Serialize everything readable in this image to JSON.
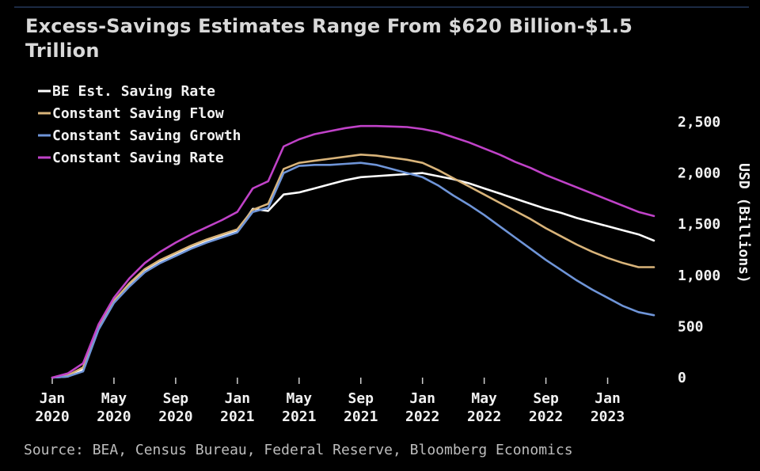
{
  "title": "Excess-Savings Estimates Range From $620 Billion-$1.5 Trillion",
  "source": "Source: BEA, Census Bureau, Federal Reserve, Bloomberg Economics",
  "chart_data": {
    "type": "line",
    "title": "Excess-Savings Estimates Range From $620 Billion-$1.5 Trillion",
    "ylabel": "USD (Billions)",
    "ylim": [
      0,
      2500
    ],
    "yticks": [
      "0",
      "500",
      "1,000",
      "1,500",
      "2,000",
      "2,500"
    ],
    "ytick_values": [
      0,
      500,
      1000,
      1500,
      2000,
      2500
    ],
    "xlim": [
      "2020-01",
      "2023-04"
    ],
    "xticks": [
      {
        "month": "2020-01",
        "line1": "Jan",
        "line2": "2020"
      },
      {
        "month": "2020-05",
        "line1": "May",
        "line2": "2020"
      },
      {
        "month": "2020-09",
        "line1": "Sep",
        "line2": "2020"
      },
      {
        "month": "2021-01",
        "line1": "Jan",
        "line2": "2021"
      },
      {
        "month": "2021-05",
        "line1": "May",
        "line2": "2021"
      },
      {
        "month": "2021-09",
        "line1": "Sep",
        "line2": "2021"
      },
      {
        "month": "2022-01",
        "line1": "Jan",
        "line2": "2022"
      },
      {
        "month": "2022-05",
        "line1": "May",
        "line2": "2022"
      },
      {
        "month": "2022-09",
        "line1": "Sep",
        "line2": "2022"
      },
      {
        "month": "2023-01",
        "line1": "Jan",
        "line2": "2023"
      }
    ],
    "legend_position": "top-left",
    "grid": false,
    "x": [
      "2020-01",
      "2020-02",
      "2020-03",
      "2020-04",
      "2020-05",
      "2020-06",
      "2020-07",
      "2020-08",
      "2020-09",
      "2020-10",
      "2020-11",
      "2020-12",
      "2021-01",
      "2021-02",
      "2021-03",
      "2021-04",
      "2021-05",
      "2021-06",
      "2021-07",
      "2021-08",
      "2021-09",
      "2021-10",
      "2021-11",
      "2021-12",
      "2022-01",
      "2022-02",
      "2022-03",
      "2022-04",
      "2022-05",
      "2022-06",
      "2022-07",
      "2022-08",
      "2022-09",
      "2022-10",
      "2022-11",
      "2022-12",
      "2023-01",
      "2023-02",
      "2023-03",
      "2023-04"
    ],
    "series": [
      {
        "name": "BE Est. Saving Rate",
        "color": "#ffffff",
        "values": [
          0,
          10,
          80,
          480,
          740,
          900,
          1040,
          1130,
          1200,
          1270,
          1330,
          1380,
          1430,
          1650,
          1630,
          1790,
          1810,
          1850,
          1890,
          1930,
          1960,
          1970,
          1980,
          1990,
          2000,
          1970,
          1940,
          1900,
          1850,
          1800,
          1750,
          1700,
          1650,
          1610,
          1560,
          1520,
          1480,
          1440,
          1400,
          1340
        ]
      },
      {
        "name": "Constant Saving Flow",
        "color": "#d9b47a",
        "values": [
          0,
          20,
          100,
          500,
          750,
          920,
          1060,
          1150,
          1220,
          1290,
          1350,
          1400,
          1450,
          1640,
          1700,
          2040,
          2100,
          2120,
          2140,
          2160,
          2180,
          2170,
          2150,
          2130,
          2100,
          2030,
          1950,
          1870,
          1790,
          1710,
          1630,
          1550,
          1460,
          1380,
          1300,
          1230,
          1170,
          1120,
          1080,
          1080
        ]
      },
      {
        "name": "Constant Saving Growth",
        "color": "#6f95d8",
        "values": [
          0,
          10,
          60,
          470,
          730,
          890,
          1030,
          1120,
          1190,
          1260,
          1320,
          1370,
          1420,
          1620,
          1660,
          2000,
          2070,
          2080,
          2080,
          2090,
          2100,
          2080,
          2040,
          2000,
          1960,
          1880,
          1780,
          1690,
          1590,
          1480,
          1370,
          1260,
          1150,
          1050,
          950,
          860,
          780,
          700,
          640,
          610
        ]
      },
      {
        "name": "Constant Saving Rate",
        "color": "#c042c8",
        "values": [
          0,
          40,
          140,
          520,
          780,
          970,
          1120,
          1230,
          1320,
          1400,
          1470,
          1540,
          1620,
          1850,
          1920,
          2260,
          2330,
          2380,
          2410,
          2440,
          2460,
          2460,
          2455,
          2450,
          2430,
          2400,
          2350,
          2300,
          2240,
          2180,
          2110,
          2050,
          1980,
          1920,
          1860,
          1800,
          1740,
          1680,
          1620,
          1580
        ]
      }
    ]
  }
}
